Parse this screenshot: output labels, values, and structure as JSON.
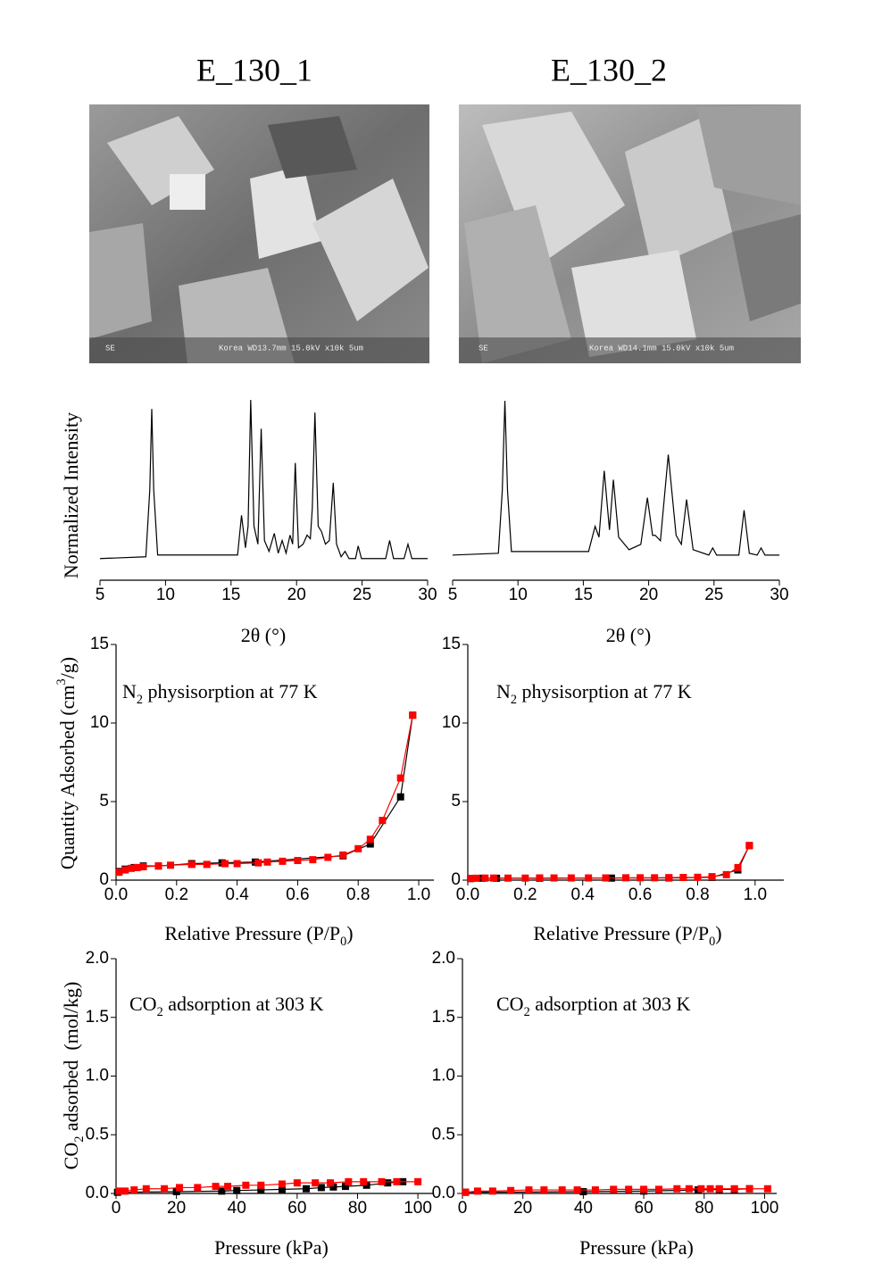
{
  "panels": [
    {
      "title": "E_130_1",
      "caption_left": "SE",
      "caption": "Korea WD13.7mm 15.0kV x10k 5um"
    },
    {
      "title": "E_130_2",
      "caption_left": "SE",
      "caption": "Korea WD14.1mm 15.0kV x10k 5um"
    }
  ],
  "chart_data": [
    {
      "type": "line",
      "y_label": [
        {
          "text": "Normalized Intensity"
        }
      ],
      "x_label": [
        {
          "text": "2θ (°)"
        }
      ],
      "xlim": [
        5,
        30
      ],
      "xticks": [
        5,
        10,
        15,
        20,
        25,
        30
      ],
      "ylim": [
        0,
        1
      ],
      "series": [
        {
          "color": "#000000",
          "x": [
            5,
            8.5,
            8.8,
            8.95,
            9.1,
            9.4,
            15.5,
            15.8,
            16.1,
            16.3,
            16.5,
            16.75,
            17.05,
            17.3,
            17.55,
            17.9,
            18.3,
            18.6,
            18.9,
            19.2,
            19.5,
            19.7,
            19.9,
            20.15,
            20.5,
            20.8,
            21.05,
            21.2,
            21.4,
            21.65,
            21.9,
            22.2,
            22.5,
            22.8,
            23.05,
            23.4,
            23.7,
            24.0,
            24.5,
            24.7,
            24.95,
            26.8,
            27.1,
            27.4,
            28.2,
            28.5,
            28.8,
            30
          ],
          "values": [
            0.12,
            0.13,
            0.5,
            0.95,
            0.5,
            0.14,
            0.14,
            0.36,
            0.18,
            0.3,
            1.0,
            0.3,
            0.2,
            0.84,
            0.22,
            0.16,
            0.26,
            0.15,
            0.22,
            0.15,
            0.25,
            0.2,
            0.65,
            0.18,
            0.2,
            0.25,
            0.23,
            0.4,
            0.93,
            0.3,
            0.27,
            0.2,
            0.22,
            0.54,
            0.2,
            0.13,
            0.16,
            0.12,
            0.12,
            0.19,
            0.12,
            0.12,
            0.22,
            0.12,
            0.12,
            0.2,
            0.12,
            0.12
          ]
        }
      ]
    },
    {
      "type": "line",
      "x_label": [
        {
          "text": "2θ (°)"
        }
      ],
      "xlim": [
        5,
        30
      ],
      "xticks": [
        5,
        10,
        15,
        20,
        25,
        30
      ],
      "ylim": [
        0,
        1
      ],
      "series": [
        {
          "color": "#000000",
          "x": [
            5,
            8.5,
            8.8,
            9.0,
            9.2,
            9.5,
            15.4,
            15.9,
            16.2,
            16.6,
            17.0,
            17.3,
            17.7,
            18.5,
            19.4,
            19.9,
            20.3,
            20.5,
            20.9,
            21.5,
            22.1,
            22.5,
            22.9,
            23.4,
            24.6,
            24.9,
            25.2,
            26.9,
            27.3,
            27.7,
            28.3,
            28.6,
            28.9,
            30
          ],
          "values": [
            0.14,
            0.15,
            0.5,
            1.0,
            0.5,
            0.16,
            0.16,
            0.3,
            0.24,
            0.61,
            0.28,
            0.56,
            0.24,
            0.17,
            0.2,
            0.46,
            0.25,
            0.25,
            0.22,
            0.7,
            0.25,
            0.2,
            0.45,
            0.17,
            0.14,
            0.18,
            0.14,
            0.14,
            0.39,
            0.15,
            0.14,
            0.18,
            0.14,
            0.14
          ]
        }
      ]
    },
    {
      "type": "line",
      "marker": "square",
      "annotation": [
        {
          "text": "N"
        },
        {
          "text": "2",
          "shift": "sub"
        },
        {
          "text": " physisorption at 77 K"
        }
      ],
      "y_label": [
        {
          "text": "Quantity Adsorbed (cm"
        },
        {
          "text": "3",
          "shift": "super"
        },
        {
          "text": "/g)"
        }
      ],
      "x_label": [
        {
          "text": "Relative Pressure (P/P"
        },
        {
          "text": "0",
          "shift": "sub"
        },
        {
          "text": ")"
        }
      ],
      "xlim": [
        0,
        1.05
      ],
      "xticks": [
        {
          "value": 0,
          "label": "0.0"
        },
        0.2,
        0.4,
        0.6,
        0.8,
        {
          "value": 1,
          "label": "1.0"
        }
      ],
      "ylim": [
        0,
        15
      ],
      "yticks": [
        0,
        5,
        10,
        15
      ],
      "series": [
        {
          "color": "#000000",
          "x": [
            0.01,
            0.03,
            0.06,
            0.09,
            0.14,
            0.25,
            0.35,
            0.46,
            0.75,
            0.84,
            0.94,
            0.98
          ],
          "values": [
            0.55,
            0.7,
            0.8,
            0.9,
            0.9,
            1.05,
            1.1,
            1.15,
            1.55,
            2.3,
            5.3,
            10.5
          ]
        },
        {
          "color": "#ff0000",
          "x": [
            0.01,
            0.03,
            0.05,
            0.07,
            0.09,
            0.14,
            0.18,
            0.25,
            0.3,
            0.36,
            0.4,
            0.47,
            0.5,
            0.55,
            0.6,
            0.65,
            0.7,
            0.75,
            0.8,
            0.84,
            0.88,
            0.94,
            0.98
          ],
          "values": [
            0.5,
            0.65,
            0.75,
            0.8,
            0.85,
            0.9,
            0.95,
            1.0,
            1.0,
            1.05,
            1.05,
            1.1,
            1.15,
            1.2,
            1.25,
            1.3,
            1.45,
            1.6,
            2.0,
            2.6,
            3.8,
            6.5,
            10.5
          ]
        }
      ]
    },
    {
      "type": "line",
      "marker": "square",
      "annotation": [
        {
          "text": "N"
        },
        {
          "text": "2",
          "shift": "sub"
        },
        {
          "text": " physisorption at 77 K"
        }
      ],
      "x_label": [
        {
          "text": "Relative Pressure (P/P"
        },
        {
          "text": "0",
          "shift": "sub"
        },
        {
          "text": ")"
        }
      ],
      "xlim": [
        0,
        1.1
      ],
      "xticks": [
        {
          "value": 0,
          "label": "0.0"
        },
        0.2,
        0.4,
        0.6,
        0.8,
        {
          "value": 1,
          "label": "1.0"
        }
      ],
      "ylim": [
        0,
        15
      ],
      "yticks": [
        0,
        5,
        10,
        15
      ],
      "series": [
        {
          "color": "#000000",
          "x": [
            0.01,
            0.05,
            0.1,
            0.25,
            0.5,
            0.7,
            0.85,
            0.94,
            0.98
          ],
          "values": [
            0.1,
            0.12,
            0.12,
            0.12,
            0.13,
            0.14,
            0.18,
            0.65,
            2.2
          ]
        },
        {
          "color": "#ff0000",
          "x": [
            0.01,
            0.03,
            0.06,
            0.09,
            0.14,
            0.2,
            0.25,
            0.3,
            0.36,
            0.42,
            0.48,
            0.55,
            0.6,
            0.65,
            0.7,
            0.75,
            0.8,
            0.85,
            0.9,
            0.94,
            0.98
          ],
          "values": [
            0.1,
            0.12,
            0.13,
            0.13,
            0.13,
            0.13,
            0.14,
            0.14,
            0.14,
            0.14,
            0.14,
            0.15,
            0.15,
            0.15,
            0.16,
            0.17,
            0.18,
            0.22,
            0.35,
            0.8,
            2.2
          ]
        }
      ]
    },
    {
      "type": "line",
      "marker": "square",
      "annotation": [
        {
          "text": "CO"
        },
        {
          "text": "2",
          "shift": "sub"
        },
        {
          "text": " adsorption at 303 K"
        }
      ],
      "y_label": [
        {
          "text": "CO"
        },
        {
          "text": "2",
          "shift": "sub"
        },
        {
          "text": " adsorbed  (mol/kg)"
        }
      ],
      "x_label": [
        {
          "text": "Pressure (kPa)"
        }
      ],
      "xlim": [
        0,
        105
      ],
      "xticks": [
        0,
        20,
        40,
        60,
        80,
        100
      ],
      "ylim": [
        0,
        2
      ],
      "yticks": [
        {
          "value": 0,
          "label": "0.0"
        },
        0.5,
        {
          "value": 1,
          "label": "1.0"
        },
        1.5,
        {
          "value": 2,
          "label": "2.0"
        }
      ],
      "series": [
        {
          "color": "#000000",
          "x": [
            0.5,
            20,
            35,
            40,
            48,
            55,
            63,
            68,
            72,
            76,
            83,
            90,
            95
          ],
          "values": [
            0.01,
            0.015,
            0.02,
            0.025,
            0.03,
            0.035,
            0.04,
            0.05,
            0.055,
            0.06,
            0.07,
            0.09,
            0.1
          ]
        },
        {
          "color": "#ff0000",
          "x": [
            1,
            3,
            6,
            10,
            16,
            21,
            27,
            33,
            37,
            43,
            48,
            55,
            60,
            66,
            71,
            77,
            82,
            88,
            93,
            100
          ],
          "values": [
            0.02,
            0.02,
            0.03,
            0.04,
            0.04,
            0.05,
            0.05,
            0.06,
            0.06,
            0.07,
            0.07,
            0.08,
            0.09,
            0.09,
            0.09,
            0.1,
            0.1,
            0.1,
            0.1,
            0.1
          ]
        }
      ]
    },
    {
      "type": "line",
      "marker": "square",
      "annotation": [
        {
          "text": "CO"
        },
        {
          "text": "2",
          "shift": "sub"
        },
        {
          "text": " adsorption at 303 K"
        }
      ],
      "x_label": [
        {
          "text": "Pressure (kPa)"
        }
      ],
      "xlim": [
        0,
        104
      ],
      "xticks": [
        0,
        20,
        40,
        60,
        80,
        100
      ],
      "ylim": [
        0,
        2
      ],
      "yticks": [
        {
          "value": 0,
          "label": "0.0"
        },
        0.5,
        {
          "value": 1,
          "label": "1.0"
        },
        1.5,
        {
          "value": 2,
          "label": "2.0"
        }
      ],
      "series": [
        {
          "color": "#000000",
          "x": [
            1,
            40,
            60,
            78,
            85,
            90,
            95
          ],
          "values": [
            0.01,
            0.015,
            0.02,
            0.03,
            0.035,
            0.035,
            0.04
          ]
        },
        {
          "color": "#ff0000",
          "x": [
            1,
            5,
            10,
            16,
            22,
            27,
            33,
            38,
            44,
            50,
            55,
            60,
            65,
            71,
            75,
            79,
            82,
            85,
            90,
            95,
            101
          ],
          "values": [
            0.01,
            0.02,
            0.02,
            0.025,
            0.03,
            0.03,
            0.03,
            0.03,
            0.03,
            0.035,
            0.035,
            0.035,
            0.035,
            0.04,
            0.04,
            0.04,
            0.04,
            0.04,
            0.04,
            0.04,
            0.04
          ]
        }
      ]
    }
  ]
}
